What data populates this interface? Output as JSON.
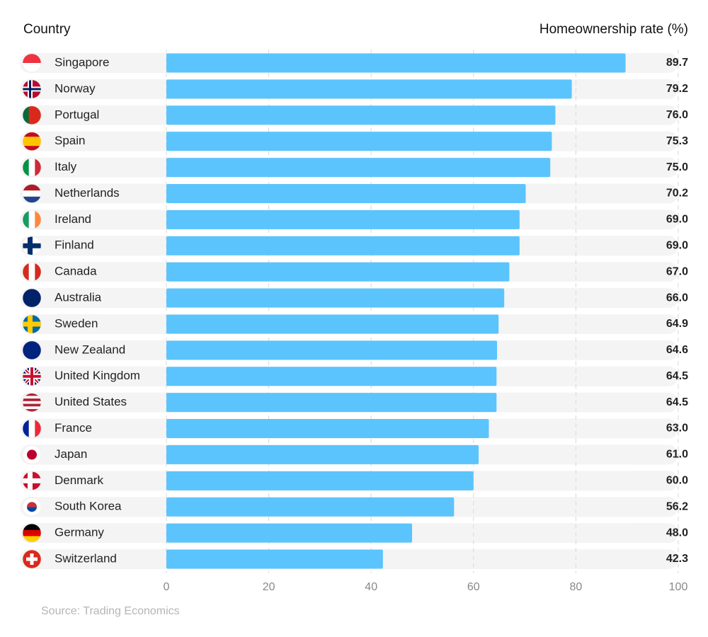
{
  "chart_data": {
    "type": "bar",
    "orientation": "horizontal",
    "ylabel": "Country",
    "xlabel": "Homeownership rate (%)",
    "source": "Source: Trading Economics",
    "categories": [
      "Singapore",
      "Norway",
      "Portugal",
      "Spain",
      "Italy",
      "Netherlands",
      "Ireland",
      "Finland",
      "Canada",
      "Australia",
      "Sweden",
      "New Zealand",
      "United Kingdom",
      "United States",
      "France",
      "Japan",
      "Denmark",
      "South Korea",
      "Germany",
      "Switzerland"
    ],
    "values": [
      89.7,
      79.2,
      76,
      75.3,
      75,
      70.2,
      69,
      69,
      67,
      66,
      64.9,
      64.6,
      64.5,
      64.5,
      63,
      61,
      60,
      56.2,
      48,
      42.3
    ],
    "value_labels": [
      "89.7",
      "79.2",
      "76.0",
      "75.3",
      "75.0",
      "70.2",
      "69.0",
      "69.0",
      "67.0",
      "66.0",
      "64.9",
      "64.6",
      "64.5",
      "64.5",
      "63.0",
      "61.0",
      "60.0",
      "56.2",
      "48.0",
      "42.3"
    ],
    "color": "#5bc4fd",
    "xlim": [
      0,
      100
    ],
    "xticks": [
      0,
      20,
      40,
      60,
      80,
      100
    ],
    "grid": true
  }
}
